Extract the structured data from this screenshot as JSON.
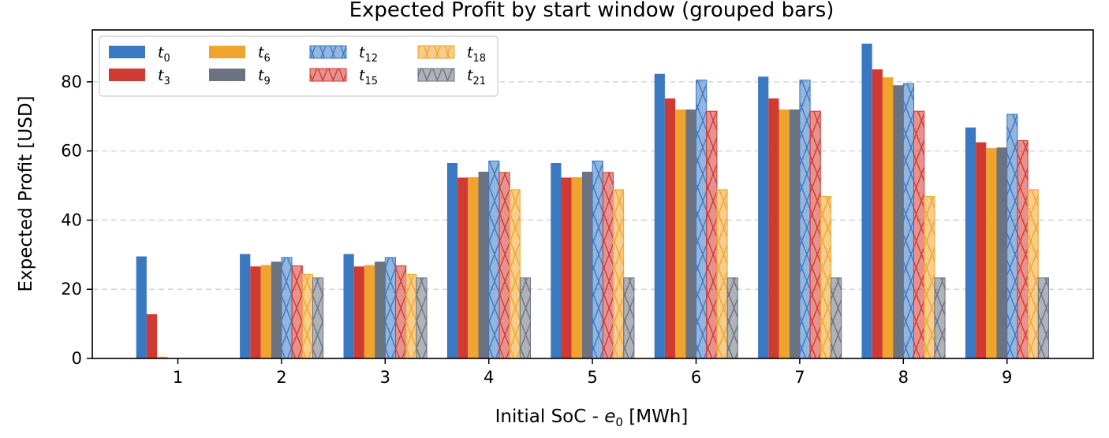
{
  "chart_data": {
    "type": "bar",
    "title": "Expected Profit by start window (grouped bars)",
    "xlabel": {
      "prefix": "Initial SoC - ",
      "var": "e",
      "sub": "0",
      "suffix": " [MWh]"
    },
    "ylabel": "Expected Profit [USD]",
    "ylim": [
      0,
      95
    ],
    "yticks": [
      0,
      20,
      40,
      60,
      80
    ],
    "grid": "y-dashed",
    "legend_position": "top-left",
    "categories": [
      "1",
      "2",
      "3",
      "4",
      "5",
      "6",
      "7",
      "8",
      "9"
    ],
    "series": [
      {
        "name": "t",
        "sub": "0",
        "color": "#3a78c2",
        "hatch": false,
        "values": [
          29.5,
          30.2,
          30.2,
          56.5,
          56.5,
          82.3,
          81.5,
          91.0,
          66.8
        ]
      },
      {
        "name": "t",
        "sub": "3",
        "color": "#d13a32",
        "hatch": false,
        "values": [
          12.8,
          26.6,
          26.6,
          52.3,
          52.3,
          75.2,
          75.2,
          83.6,
          62.5
        ]
      },
      {
        "name": "t",
        "sub": "6",
        "color": "#f0a42e",
        "hatch": false,
        "values": [
          0.5,
          27.0,
          27.0,
          52.4,
          52.4,
          72.0,
          72.0,
          81.3,
          60.8
        ]
      },
      {
        "name": "t",
        "sub": "9",
        "color": "#6b7280",
        "hatch": false,
        "values": [
          0,
          28.0,
          28.0,
          54.0,
          54.0,
          72.0,
          72.0,
          79.0,
          61.0
        ]
      },
      {
        "name": "t",
        "sub": "12",
        "color": "#3a78c2",
        "hatch": true,
        "values": [
          0,
          29.2,
          29.2,
          57.1,
          57.1,
          80.5,
          80.5,
          79.5,
          70.6
        ]
      },
      {
        "name": "t",
        "sub": "15",
        "color": "#d13a32",
        "hatch": true,
        "values": [
          0,
          26.8,
          26.8,
          53.8,
          53.8,
          71.5,
          71.5,
          71.5,
          63.0
        ]
      },
      {
        "name": "t",
        "sub": "18",
        "color": "#f0a42e",
        "hatch": true,
        "values": [
          0,
          24.3,
          24.3,
          48.8,
          48.8,
          48.8,
          46.8,
          46.8,
          48.8
        ]
      },
      {
        "name": "t",
        "sub": "21",
        "color": "#6b7280",
        "hatch": true,
        "values": [
          0,
          23.3,
          23.3,
          23.3,
          23.3,
          23.3,
          23.3,
          23.3,
          23.3
        ]
      }
    ]
  }
}
